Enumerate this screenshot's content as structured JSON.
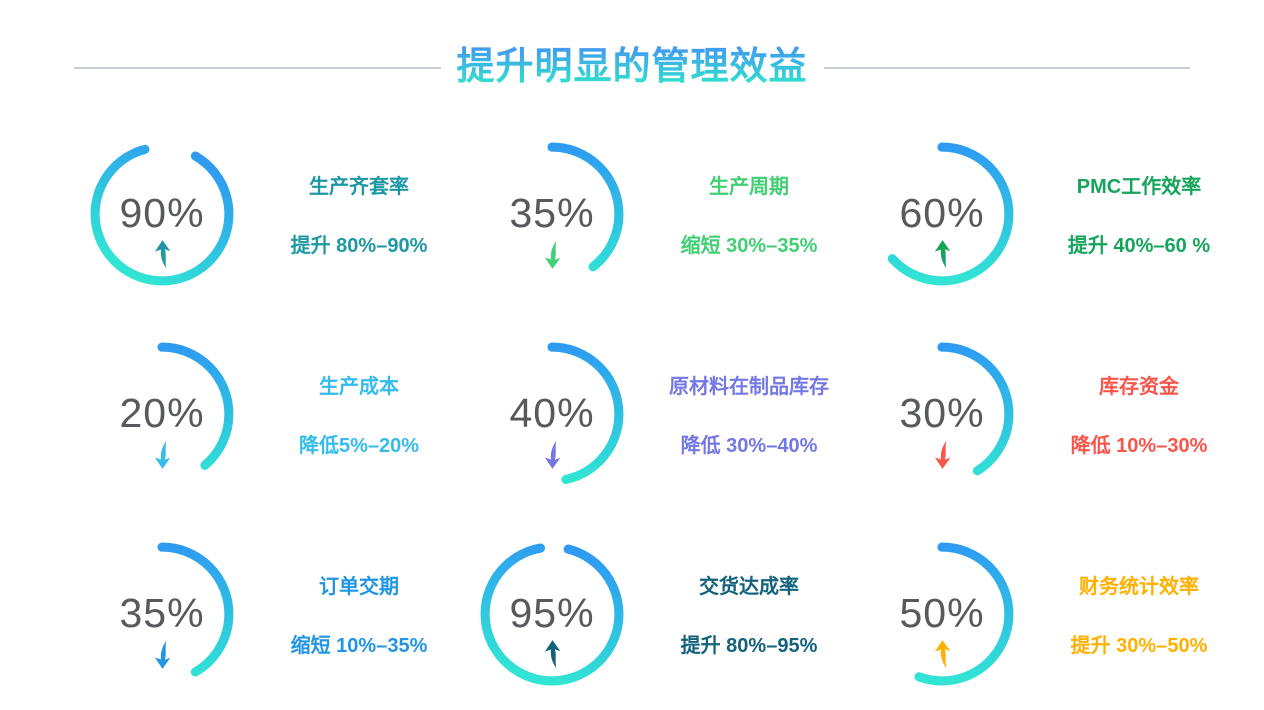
{
  "header": {
    "title": "提升明显的管理效益",
    "divider_color": "#C7CDD3"
  },
  "arc_gradient": {
    "from": "#2E9BF1",
    "to": "#31E5D4"
  },
  "percent_color": "#57595D",
  "items": [
    {
      "percent": "90%",
      "label": "生产齐套率",
      "change": "提升 80%–90%",
      "direction": "up",
      "color": "#1E98A4",
      "arc_deg": 315,
      "arc_start_deg": 30
    },
    {
      "percent": "35%",
      "label": "生产周期",
      "change": "缩短 30%–35%",
      "direction": "down",
      "color": "#42CE74",
      "arc_deg": 142,
      "arc_start_deg": 0
    },
    {
      "percent": "60%",
      "label": "PMC工作效率",
      "change": "提升 40%–60 %",
      "direction": "up",
      "color": "#16A45C",
      "arc_deg": 228,
      "arc_start_deg": 0
    },
    {
      "percent": "20%",
      "label": "生产成本",
      "change": "降低5%–20%",
      "direction": "down",
      "color": "#33BCEC",
      "arc_deg": 140,
      "arc_start_deg": 0
    },
    {
      "percent": "40%",
      "label": "原材料在制品库存",
      "change": "降低 30%–40%",
      "direction": "down",
      "color": "#7478E4",
      "arc_deg": 168,
      "arc_start_deg": 0
    },
    {
      "percent": "30%",
      "label": "库存资金",
      "change": "降低 10%–30%",
      "direction": "down",
      "color": "#FA554B",
      "arc_deg": 148,
      "arc_start_deg": 0
    },
    {
      "percent": "35%",
      "label": "订单交期",
      "change": "缩短 10%–35%",
      "direction": "down",
      "color": "#2295E3",
      "arc_deg": 150,
      "arc_start_deg": 0
    },
    {
      "percent": "95%",
      "label": "交货达成率",
      "change": "提升 80%–95%",
      "direction": "up",
      "color": "#14617B",
      "arc_deg": 336,
      "arc_start_deg": 14
    },
    {
      "percent": "50%",
      "label": "财务统计效率",
      "change": "提升 30%–50%",
      "direction": "up",
      "color": "#FFB000",
      "arc_deg": 200,
      "arc_start_deg": 0
    }
  ],
  "chart_data": {
    "type": "pie",
    "subtype": "donut-gauges",
    "title": "提升明显的管理效益",
    "gauges": [
      {
        "label": "生产齐套率",
        "percent": 90,
        "change": "提升 80%–90%",
        "direction": "up"
      },
      {
        "label": "生产周期",
        "percent": 35,
        "change": "缩短 30%–35%",
        "direction": "down"
      },
      {
        "label": "PMC工作效率",
        "percent": 60,
        "change": "提升 40%–60 %",
        "direction": "up"
      },
      {
        "label": "生产成本",
        "percent": 20,
        "change": "降低5%–20%",
        "direction": "down"
      },
      {
        "label": "原材料在制品库存",
        "percent": 40,
        "change": "降低 30%–40%",
        "direction": "down"
      },
      {
        "label": "库存资金",
        "percent": 30,
        "change": "降低 10%–30%",
        "direction": "down"
      },
      {
        "label": "订单交期",
        "percent": 35,
        "change": "缩短 10%–35%",
        "direction": "down"
      },
      {
        "label": "交货达成率",
        "percent": 95,
        "change": "提升 80%–95%",
        "direction": "up"
      },
      {
        "label": "财务统计效率",
        "percent": 50,
        "change": "提升 30%–50%",
        "direction": "up"
      }
    ]
  }
}
